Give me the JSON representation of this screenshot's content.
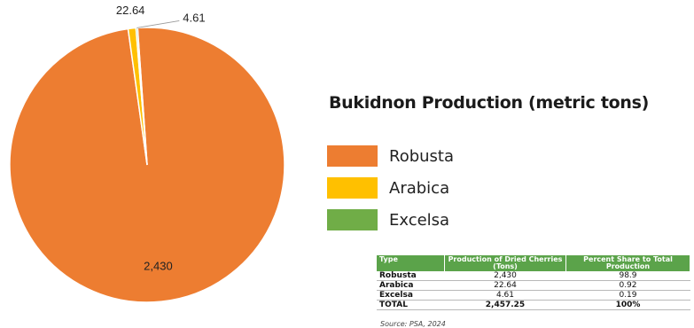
{
  "chart_data": {
    "type": "pie",
    "title": "Bukidnon Production (metric tons)",
    "slices": [
      {
        "name": "Robusta",
        "value": 2430,
        "label": "2,430",
        "color": "#ed7d31"
      },
      {
        "name": "Arabica",
        "value": 22.64,
        "label": "22.64",
        "color": "#ffc000"
      },
      {
        "name": "Excelsa",
        "value": 4.61,
        "label": "4.61",
        "color": "#70ad47"
      }
    ],
    "legend_position": "right"
  },
  "table": {
    "headers": [
      "Type",
      "Production of Dried Cherries (Tons)",
      "Percent Share to Total Production"
    ],
    "rows": [
      [
        "Robusta",
        "2,430",
        "98.9"
      ],
      [
        "Arabica",
        "22.64",
        "0.92"
      ],
      [
        "Excelsa",
        "4.61",
        "0.19"
      ],
      [
        "TOTAL",
        "2,457.25",
        "100%"
      ]
    ],
    "source": "Source: PSA, 2024"
  }
}
